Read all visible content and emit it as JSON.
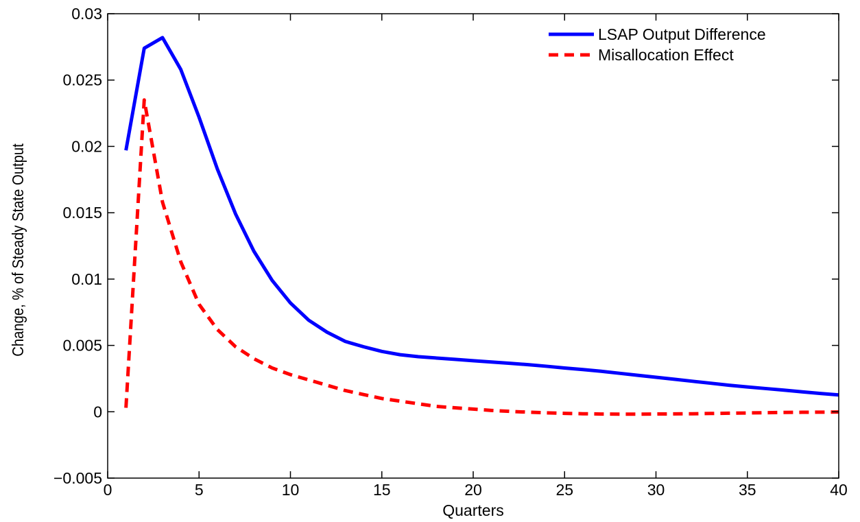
{
  "chart_data": {
    "type": "line",
    "title": "",
    "xlabel": "Quarters",
    "ylabel": "Change, % of Steady State Output",
    "xlim": [
      0,
      40
    ],
    "ylim": [
      -0.005,
      0.03
    ],
    "xticks": [
      0,
      5,
      10,
      15,
      20,
      25,
      30,
      35,
      40
    ],
    "xtick_labels": [
      "0",
      "5",
      "10",
      "15",
      "20",
      "25",
      "30",
      "35",
      "40"
    ],
    "yticks": [
      -0.005,
      0,
      0.005,
      0.01,
      0.015,
      0.02,
      0.025,
      0.03
    ],
    "ytick_labels": [
      "−0.005",
      "0",
      "0.005",
      "0.01",
      "0.015",
      "0.02",
      "0.025",
      "0.03"
    ],
    "grid": false,
    "legend_position": "top-right",
    "x": [
      1,
      2,
      3,
      4,
      5,
      6,
      7,
      8,
      9,
      10,
      11,
      12,
      13,
      14,
      15,
      16,
      17,
      18,
      19,
      20,
      21,
      22,
      23,
      24,
      25,
      26,
      27,
      28,
      29,
      30,
      31,
      32,
      33,
      34,
      35,
      36,
      37,
      38,
      39,
      40
    ],
    "series": [
      {
        "name": "LSAP Output Difference",
        "color": "#0000ff",
        "style": "solid",
        "values": [
          0.0197,
          0.0274,
          0.0282,
          0.0258,
          0.0222,
          0.0183,
          0.0149,
          0.0121,
          0.0099,
          0.0082,
          0.0069,
          0.006,
          0.0053,
          0.0049,
          0.00455,
          0.0043,
          0.00415,
          0.00405,
          0.00395,
          0.00385,
          0.00375,
          0.00365,
          0.00355,
          0.00343,
          0.0033,
          0.00318,
          0.00305,
          0.0029,
          0.00275,
          0.0026,
          0.00245,
          0.0023,
          0.00215,
          0.002,
          0.00187,
          0.00175,
          0.00163,
          0.0015,
          0.00138,
          0.00127
        ]
      },
      {
        "name": "Misallocation Effect",
        "color": "#ff0000",
        "style": "dashed",
        "values": [
          0.0003,
          0.0235,
          0.0158,
          0.0113,
          0.0081,
          0.0062,
          0.0049,
          0.004,
          0.0033,
          0.0028,
          0.0024,
          0.002,
          0.0016,
          0.0013,
          0.001,
          0.0008,
          0.0006,
          0.0004,
          0.0003,
          0.0002,
          0.0001,
          3e-05,
          -3e-05,
          -8e-05,
          -0.00012,
          -0.00015,
          -0.00017,
          -0.00018,
          -0.00018,
          -0.00017,
          -0.00016,
          -0.00015,
          -0.00013,
          -0.00011,
          -9e-05,
          -7e-05,
          -5e-05,
          -4e-05,
          -3e-05,
          -2e-05
        ]
      }
    ]
  }
}
